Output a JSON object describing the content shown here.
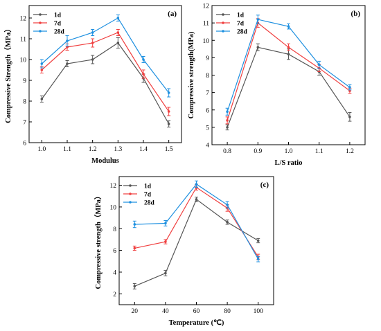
{
  "chart_data": [
    {
      "type": "line",
      "panel_label": "(a)",
      "xlabel": "Modulus",
      "ylabel": "Compressive Strength（MPa）",
      "x": [
        1.0,
        1.1,
        1.2,
        1.3,
        1.4,
        1.5
      ],
      "x_tick_labels": [
        "1.0",
        "1.1",
        "1.2",
        "1.3",
        "1.4",
        "1.5"
      ],
      "xlim": [
        0.95,
        1.55
      ],
      "ylim": [
        6,
        12.6
      ],
      "y_ticks": [
        6,
        7,
        8,
        9,
        10,
        11,
        12
      ],
      "legend_position": "top-left",
      "series": [
        {
          "name": "1d",
          "color": "#555555",
          "values": [
            8.1,
            9.8,
            10.0,
            10.8,
            9.1,
            6.9
          ],
          "errors": [
            0.15,
            0.15,
            0.2,
            0.25,
            0.2,
            0.15
          ]
        },
        {
          "name": "7d",
          "color": "#f04040",
          "values": [
            9.5,
            10.6,
            10.8,
            11.3,
            9.3,
            7.5
          ],
          "errors": [
            0.15,
            0.15,
            0.2,
            0.15,
            0.2,
            0.2
          ]
        },
        {
          "name": "28d",
          "color": "#1e90e0",
          "values": [
            9.8,
            10.9,
            11.3,
            12.0,
            10.0,
            8.4
          ],
          "errors": [
            0.2,
            0.25,
            0.15,
            0.15,
            0.15,
            0.2
          ]
        }
      ]
    },
    {
      "type": "line",
      "panel_label": "(b)",
      "xlabel": "L/S ratio",
      "ylabel": "Compressive strength(MPa)",
      "x": [
        0.8,
        0.9,
        1.0,
        1.1,
        1.2
      ],
      "x_tick_labels": [
        "0.8",
        "0.9",
        "1.0",
        "1.1",
        "1.2"
      ],
      "xlim": [
        0.75,
        1.25
      ],
      "ylim": [
        4,
        12
      ],
      "y_ticks": [
        4,
        5,
        6,
        7,
        8,
        9,
        10,
        11,
        12
      ],
      "legend_position": "top-left",
      "series": [
        {
          "name": "1d",
          "color": "#555555",
          "values": [
            5.0,
            9.6,
            9.2,
            8.2,
            5.6
          ],
          "errors": [
            0.15,
            0.2,
            0.3,
            0.2,
            0.25
          ]
        },
        {
          "name": "7d",
          "color": "#f04040",
          "values": [
            5.4,
            11.0,
            9.6,
            8.4,
            7.1
          ],
          "errors": [
            0.2,
            0.25,
            0.2,
            0.2,
            0.15
          ]
        },
        {
          "name": "28d",
          "color": "#1e90e0",
          "values": [
            5.9,
            11.2,
            10.8,
            8.6,
            7.3
          ],
          "errors": [
            0.2,
            0.25,
            0.15,
            0.2,
            0.15
          ]
        }
      ]
    },
    {
      "type": "line",
      "panel_label": "(c)",
      "xlabel": "Temperature (℃)",
      "ylabel": "Compressive strength（MPa）",
      "x": [
        20,
        40,
        60,
        80,
        100
      ],
      "x_tick_labels": [
        "20",
        "40",
        "60",
        "80",
        "100"
      ],
      "xlim": [
        10,
        110
      ],
      "ylim": [
        1,
        12.8
      ],
      "y_ticks": [
        2,
        4,
        6,
        8,
        10,
        12
      ],
      "legend_position": "top-left",
      "series": [
        {
          "name": "1d",
          "color": "#555555",
          "values": [
            2.7,
            3.9,
            10.7,
            8.6,
            6.9
          ],
          "errors": [
            0.25,
            0.25,
            0.2,
            0.2,
            0.2
          ]
        },
        {
          "name": "7d",
          "color": "#f04040",
          "values": [
            6.2,
            6.8,
            11.8,
            9.9,
            5.4
          ],
          "errors": [
            0.2,
            0.2,
            0.25,
            0.3,
            0.25
          ]
        },
        {
          "name": "28d",
          "color": "#1e90e0",
          "values": [
            8.4,
            8.5,
            12.1,
            10.2,
            5.2
          ],
          "errors": [
            0.3,
            0.25,
            0.3,
            0.3,
            0.25
          ]
        }
      ]
    }
  ]
}
